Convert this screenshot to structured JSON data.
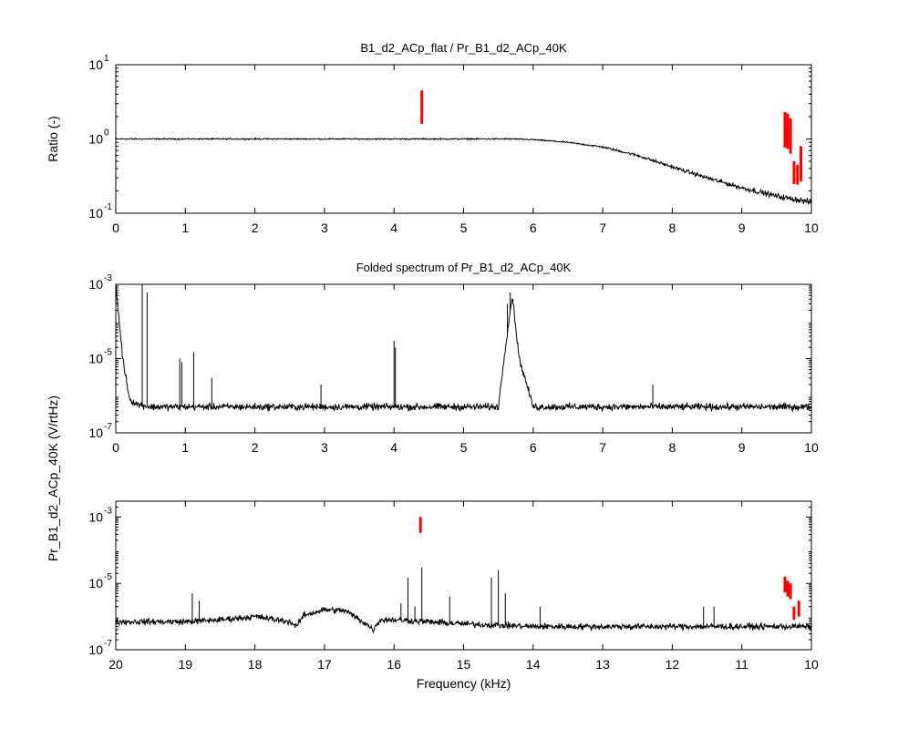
{
  "chart_data": [
    {
      "type": "line",
      "title": "B1_d2_ACp_flat / Pr_B1_d2_ACp_40K",
      "xlabel": "",
      "ylabel": "Ratio (-)",
      "yscale": "log",
      "xlim": [
        0,
        10
      ],
      "ylim": [
        0.1,
        10
      ],
      "xticks": [
        "0",
        "1",
        "2",
        "3",
        "4",
        "5",
        "6",
        "7",
        "8",
        "9",
        "10"
      ],
      "yticks": [
        {
          "base": "10",
          "exp": "-1"
        },
        {
          "base": "10",
          "exp": "0"
        },
        {
          "base": "10",
          "exp": "1"
        }
      ],
      "series": [
        {
          "color": "#000000",
          "x": [
            0,
            0.5,
            1,
            2,
            3,
            4,
            5,
            5.7,
            6,
            6.5,
            7,
            7.5,
            8,
            8.5,
            9,
            9.5,
            10
          ],
          "values": [
            1.0,
            1.0,
            1.0,
            1.0,
            1.0,
            1.0,
            1.0,
            1.0,
            0.98,
            0.9,
            0.78,
            0.6,
            0.42,
            0.3,
            0.22,
            0.17,
            0.14
          ]
        },
        {
          "color": "#ff0000",
          "x": [
            4.4,
            9.62,
            9.66,
            9.7,
            9.75,
            9.8,
            9.85
          ],
          "values": [
            4.5,
            2.3,
            2.2,
            1.9,
            0.5,
            0.45,
            0.8
          ]
        }
      ]
    },
    {
      "type": "line",
      "title": "Folded spectrum of Pr_B1_d2_ACp_40K",
      "xlabel": "",
      "ylabel": "Pr_B1_d2_ACp_40K (V/rtHz)",
      "yscale": "log",
      "xlim": [
        0,
        10
      ],
      "ylim": [
        1e-07,
        0.001
      ],
      "xticks": [
        "0",
        "1",
        "2",
        "3",
        "4",
        "5",
        "6",
        "7",
        "8",
        "9",
        "10"
      ],
      "yticks": [
        {
          "base": "10",
          "exp": "-7"
        },
        {
          "base": "10",
          "exp": "-5"
        },
        {
          "base": "10",
          "exp": "-3"
        }
      ],
      "series": [
        {
          "color": "#000000",
          "x": [
            0,
            0.1,
            0.2,
            0.3,
            0.5,
            1,
            2,
            3,
            4,
            5,
            5.5,
            5.6,
            5.7,
            5.8,
            6,
            7,
            8,
            9,
            10
          ],
          "values": [
            0.001,
            1e-05,
            8e-07,
            6e-07,
            5e-07,
            5e-07,
            5e-07,
            5e-07,
            5e-07,
            5e-07,
            5e-07,
            2e-05,
            0.0005,
            1e-05,
            5e-07,
            5e-07,
            5e-07,
            5e-07,
            5e-07
          ]
        },
        {
          "color": "#000000",
          "x": [
            0.38,
            0.45,
            0.92,
            0.95,
            1.12,
            1.38,
            2.95,
            4.0,
            4.02,
            5.63,
            5.67,
            5.71,
            7.72
          ],
          "values": [
            0.001,
            0.0006,
            1e-05,
            8e-06,
            1.5e-05,
            3e-06,
            2e-06,
            3e-05,
            2e-05,
            0.0003,
            0.0006,
            0.0004,
            2e-06
          ]
        }
      ]
    },
    {
      "type": "line",
      "title": "",
      "xlabel": "Frequency (kHz)",
      "ylabel": "",
      "yscale": "log",
      "xlim": [
        20,
        10
      ],
      "ylim": [
        1e-07,
        0.003
      ],
      "xticks": [
        "20",
        "19",
        "18",
        "17",
        "16",
        "15",
        "14",
        "13",
        "12",
        "11",
        "10"
      ],
      "yticks": [
        {
          "base": "10",
          "exp": "-7"
        },
        {
          "base": "10",
          "exp": "-5"
        },
        {
          "base": "10",
          "exp": "-3"
        }
      ],
      "series": [
        {
          "color": "#000000",
          "x": [
            20,
            19,
            18.5,
            18,
            17.5,
            17.4,
            17.3,
            17,
            16.7,
            16.4,
            16.3,
            16.2,
            16,
            15,
            14,
            13,
            12,
            11,
            10
          ],
          "values": [
            7e-07,
            7e-07,
            8e-07,
            1e-06,
            7e-07,
            5e-07,
            1.1e-06,
            1.6e-06,
            1.5e-06,
            6e-07,
            4e-07,
            8e-07,
            8e-07,
            6e-07,
            5e-07,
            5e-07,
            5e-07,
            5e-07,
            5e-07
          ]
        },
        {
          "color": "#000000",
          "x": [
            18.9,
            18.8,
            15.9,
            15.8,
            15.7,
            15.6,
            15.2,
            14.6,
            14.5,
            14.4,
            13.9,
            11.55,
            11.4
          ],
          "values": [
            5e-06,
            3e-06,
            2.5e-06,
            1.5e-05,
            2e-06,
            3e-05,
            4e-06,
            1.5e-05,
            2.5e-05,
            5e-06,
            2e-06,
            2e-06,
            2e-06
          ]
        },
        {
          "color": "#ff0000",
          "x": [
            15.62,
            10.38,
            10.34,
            10.3,
            10.25,
            10.18
          ],
          "values": [
            0.001,
            1.6e-05,
            1.2e-05,
            1e-05,
            2e-06,
            3e-06
          ]
        }
      ]
    }
  ]
}
